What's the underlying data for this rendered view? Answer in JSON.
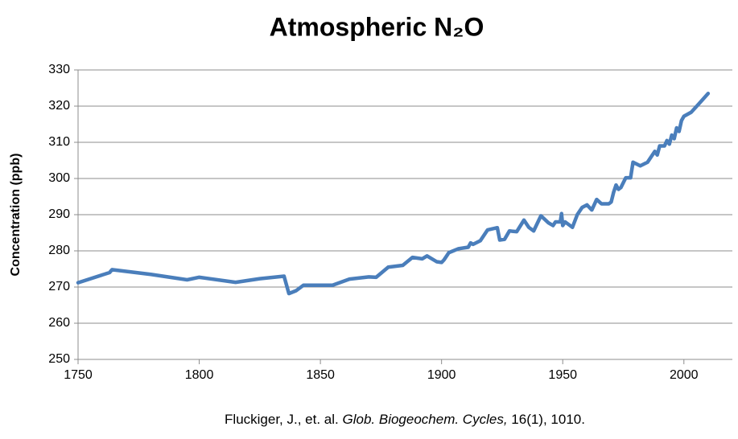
{
  "chart_data": {
    "type": "line",
    "title": "Atmospheric N₂O",
    "y_label": "Concentration (ppb)",
    "source": {
      "author": "Fluckiger, J., et. al.",
      "journal": "Glob. Biogeochem. Cycles,",
      "details": "16(1), 1010."
    },
    "xlim": [
      1750,
      2020
    ],
    "xticks": [
      1750,
      1800,
      1850,
      1900,
      1950,
      2000
    ],
    "ylim": [
      250,
      330
    ],
    "yticks": [
      250,
      260,
      270,
      280,
      290,
      300,
      310,
      320,
      330
    ],
    "grid": true,
    "x": [
      1750,
      1763,
      1764,
      1780,
      1795,
      1800,
      1815,
      1825,
      1835,
      1837,
      1840,
      1843,
      1855,
      1862,
      1870,
      1873,
      1878,
      1884,
      1888,
      1892,
      1894,
      1898,
      1900,
      1901,
      1903,
      1907,
      1911,
      1912,
      1913,
      1916,
      1919,
      1923,
      1924,
      1926,
      1928,
      1931,
      1934,
      1936,
      1938,
      1941,
      1944,
      1946,
      1947,
      1949,
      1949.5,
      1950,
      1951,
      1954,
      1956,
      1958,
      1960,
      1962,
      1964,
      1966,
      1969,
      1970,
      1971,
      1972,
      1973,
      1974,
      1976,
      1978,
      1979,
      1982,
      1985,
      1988,
      1989,
      1990,
      1992,
      1993,
      1994,
      1995,
      1996,
      1997,
      1998,
      1999,
      2000,
      2003,
      2006,
      2010
    ],
    "series": [
      {
        "name": "N2O",
        "color": "#4a7ebb",
        "values": [
          271.2,
          274,
          274.8,
          273.5,
          272,
          272.7,
          271.3,
          272.3,
          273,
          268.2,
          269,
          270.5,
          270.5,
          272.2,
          272.8,
          272.7,
          275.5,
          276,
          278.2,
          277.8,
          278.6,
          277,
          276.8,
          277.5,
          279.5,
          280.6,
          281,
          282.2,
          281.8,
          282.8,
          285.8,
          286.4,
          283,
          283.2,
          285.5,
          285.3,
          288.5,
          286.5,
          285.5,
          289.7,
          287.8,
          287,
          288,
          288,
          290.3,
          287,
          288,
          286.5,
          290,
          292,
          292.7,
          291.3,
          294.2,
          293,
          293,
          293.5,
          296.2,
          298.2,
          297,
          297.5,
          300.2,
          300.2,
          304.5,
          303.5,
          304.5,
          307.5,
          306.5,
          309,
          309,
          310.5,
          309.5,
          312,
          311,
          314,
          313,
          316,
          317.2,
          318.3,
          320.5,
          323.5
        ]
      }
    ]
  }
}
